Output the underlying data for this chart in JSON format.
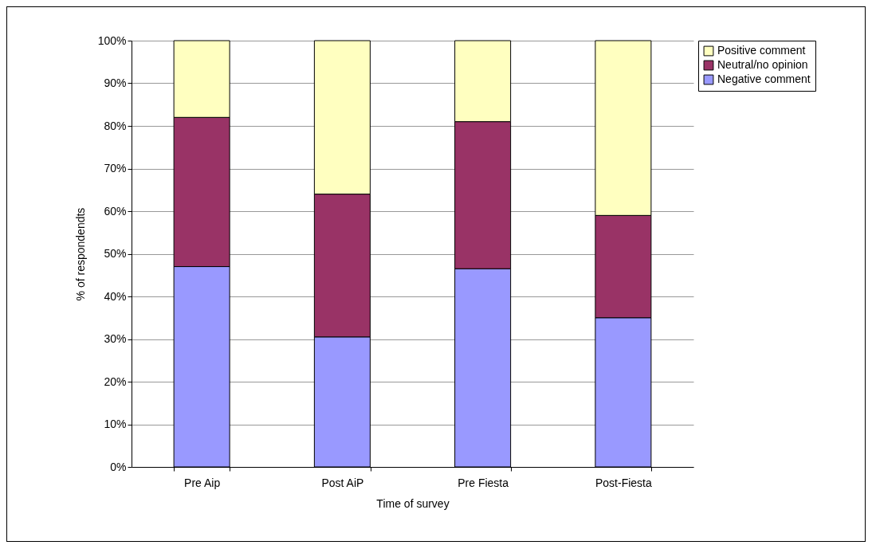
{
  "chart_data": {
    "type": "bar",
    "stacked": true,
    "xlabel": "Time of survey",
    "ylabel": "% of respondendts",
    "categories": [
      "Pre Aip",
      "Post AiP",
      "Pre Fiesta",
      "Post-Fiesta"
    ],
    "series": [
      {
        "name": "Negative comment",
        "color": "#9999ff",
        "values": [
          47,
          30.5,
          46.5,
          35
        ]
      },
      {
        "name": "Neutral/no opinion",
        "color": "#993366",
        "values": [
          35,
          33.5,
          34.5,
          24
        ]
      },
      {
        "name": "Positive comment",
        "color": "#ffffc0",
        "values": [
          18,
          36,
          19,
          41
        ]
      }
    ],
    "ylim": [
      0,
      100
    ],
    "yticks": [
      {
        "value": 0,
        "label": "0%"
      },
      {
        "value": 10,
        "label": "10%"
      },
      {
        "value": 20,
        "label": "20%"
      },
      {
        "value": 30,
        "label": "30%"
      },
      {
        "value": 40,
        "label": "40%"
      },
      {
        "value": 50,
        "label": "50%"
      },
      {
        "value": 60,
        "label": "60%"
      },
      {
        "value": 70,
        "label": "70%"
      },
      {
        "value": 80,
        "label": "80%"
      },
      {
        "value": 90,
        "label": "90%"
      },
      {
        "value": 100,
        "label": "100%"
      }
    ],
    "grid": "y",
    "legend": "right"
  }
}
